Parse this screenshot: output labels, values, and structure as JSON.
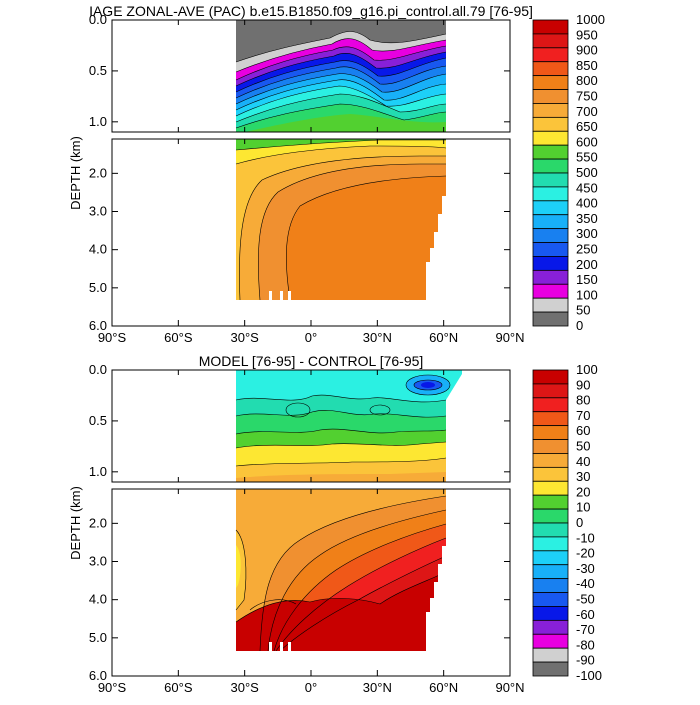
{
  "chart_data": [
    {
      "type": "heatmap",
      "title": "IAGE ZONAL-AVE (PAC) b.e15.B1850.f09_g16.pi_control.all.79 [76-95]",
      "ylabel": "DEPTH (km)",
      "xlabel": "",
      "x_ticks": [
        "90°S",
        "60°S",
        "30°S",
        "0°",
        "30°N",
        "60°N",
        "90°N"
      ],
      "xlim": [
        -90,
        90
      ],
      "ylim": [
        6.0,
        0.0
      ],
      "upper_y_ticks": [
        "0.0",
        "0.5",
        "1.0"
      ],
      "lower_y_ticks": [
        "2.0",
        "3.0",
        "4.0",
        "5.0",
        "6.0"
      ],
      "colorbar_labels": [
        "1000",
        "950",
        "900",
        "850",
        "800",
        "750",
        "700",
        "650",
        "600",
        "550",
        "500",
        "450",
        "400",
        "350",
        "300",
        "250",
        "200",
        "150",
        "100",
        "50",
        "0"
      ],
      "colorbar_colors": [
        "#c80000",
        "#dd1616",
        "#f02020",
        "#f05818",
        "#f08018",
        "#f09030",
        "#f7ab38",
        "#fbc43a",
        "#fde732",
        "#52d030",
        "#2ad86a",
        "#22dcb0",
        "#2bf0e2",
        "#1dd0f8",
        "#18b0f8",
        "#1880f0",
        "#1858f0",
        "#0818e8",
        "#8820d8",
        "#e800e0",
        "#d0d0d0",
        "#707070"
      ],
      "data_range_x": [
        -33,
        62
      ],
      "deep_core_value": 800,
      "surface_value": 0
    },
    {
      "type": "heatmap",
      "title": "MODEL [76-95] - CONTROL [76-95]",
      "ylabel": "DEPTH (km)",
      "xlabel": "",
      "x_ticks": [
        "90°S",
        "60°S",
        "30°S",
        "0°",
        "30°N",
        "60°N",
        "90°N"
      ],
      "xlim": [
        -90,
        90
      ],
      "ylim": [
        6.0,
        0.0
      ],
      "upper_y_ticks": [
        "0.0",
        "0.5",
        "1.0"
      ],
      "lower_y_ticks": [
        "2.0",
        "3.0",
        "4.0",
        "5.0",
        "6.0"
      ],
      "colorbar_labels": [
        "100",
        "90",
        "80",
        "70",
        "60",
        "50",
        "40",
        "30",
        "20",
        "10",
        "0",
        "-10",
        "-20",
        "-30",
        "-40",
        "-50",
        "-60",
        "-70",
        "-80",
        "-90",
        "-100"
      ],
      "colorbar_colors": [
        "#c80000",
        "#dd1616",
        "#f02020",
        "#f05818",
        "#f08018",
        "#f09030",
        "#f7ab38",
        "#fbc43a",
        "#fde732",
        "#52d030",
        "#2ad86a",
        "#22dcb0",
        "#2bf0e2",
        "#1dd0f8",
        "#18b0f8",
        "#1880f0",
        "#1858f0",
        "#0818e8",
        "#8820d8",
        "#e800e0",
        "#d0d0d0",
        "#707070"
      ],
      "data_range_x": [
        -33,
        62
      ],
      "deep_core_value": 100,
      "surface_value": 0
    }
  ]
}
